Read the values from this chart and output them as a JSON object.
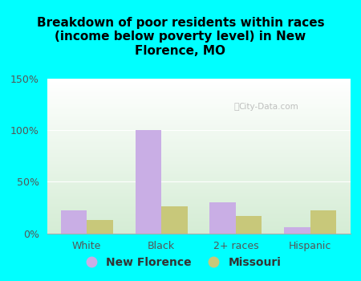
{
  "title": "Breakdown of poor residents within races\n(income below poverty level) in New\nFlorence, MO",
  "categories": [
    "White",
    "Black",
    "2+ races",
    "Hispanic"
  ],
  "new_florence": [
    22,
    100,
    30,
    6
  ],
  "missouri": [
    13,
    26,
    17,
    22
  ],
  "new_florence_color": "#c9aee5",
  "missouri_color": "#c8c87a",
  "background_color": "#00ffff",
  "plot_bg_top": "#ffffff",
  "plot_bg_bottom": "#d4ecd4",
  "ylim": [
    0,
    150
  ],
  "yticks": [
    0,
    50,
    100,
    150
  ],
  "ytick_labels": [
    "0%",
    "50%",
    "100%",
    "150%"
  ],
  "bar_width": 0.35,
  "legend_new_florence": "New Florence",
  "legend_missouri": "Missouri",
  "watermark": "City-Data.com",
  "tick_color": "#555555",
  "title_color": "#000000",
  "title_fontsize": 11
}
